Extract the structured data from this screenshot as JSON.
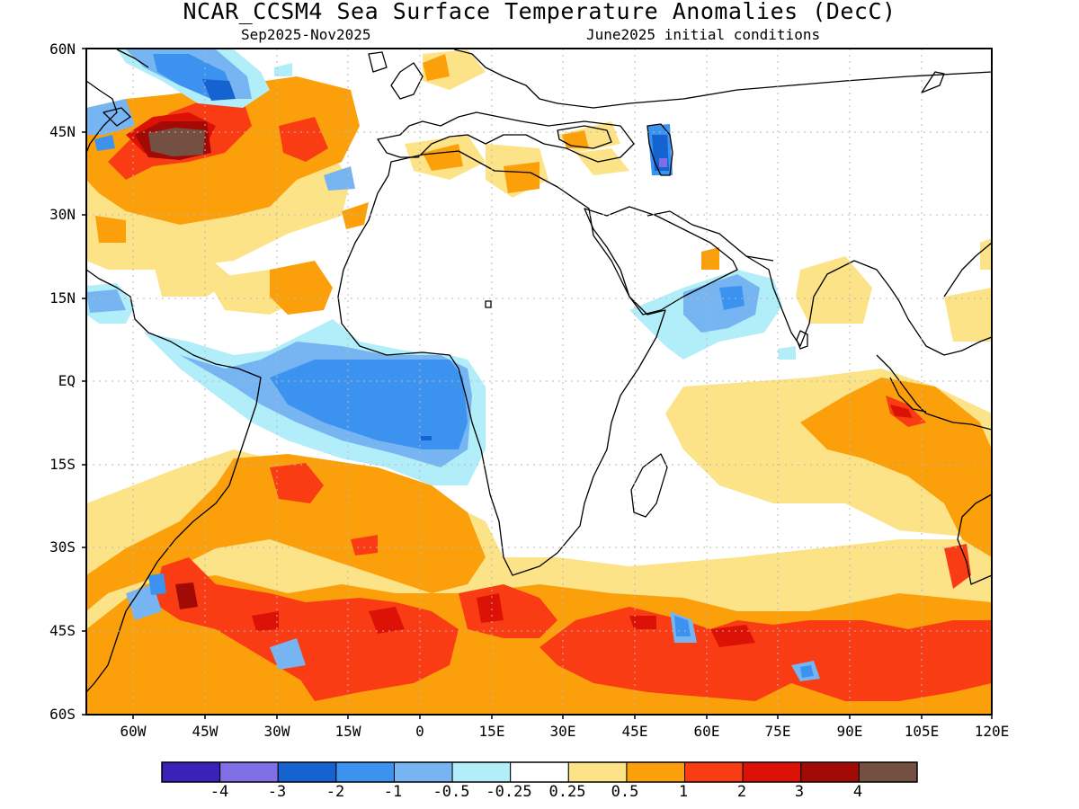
{
  "title": "NCAR_CCSM4 Sea Surface Temperature Anomalies (DecC)",
  "subtitle_left": "Sep2025-Nov2025",
  "subtitle_right": "June2025 initial conditions",
  "lat_labels": [
    "60N",
    "45N",
    "30N",
    "15N",
    "EQ",
    "15S",
    "30S",
    "45S",
    "60S"
  ],
  "lon_labels": [
    "60W",
    "45W",
    "30W",
    "15W",
    "0",
    "15E",
    "30E",
    "45E",
    "60E",
    "75E",
    "90E",
    "105E",
    "120E"
  ],
  "colorbar": {
    "colors": [
      "#3a21b7",
      "#7f6ee6",
      "#1562d1",
      "#3c93ef",
      "#76b4f2",
      "#b2eef9",
      "#ffffff",
      "#fde388",
      "#fba00b",
      "#fa3c15",
      "#dd1207",
      "#a20a05",
      "#745042"
    ],
    "labels": [
      "-4",
      "-3",
      "-2",
      "-1",
      "-0.5",
      "-0.25",
      "0.25",
      "0.5",
      "1",
      "2",
      "3",
      "4"
    ]
  },
  "colors": {
    "land_outline": "#000000",
    "frame": "#000000",
    "gridline": "#b8b8b8"
  }
}
